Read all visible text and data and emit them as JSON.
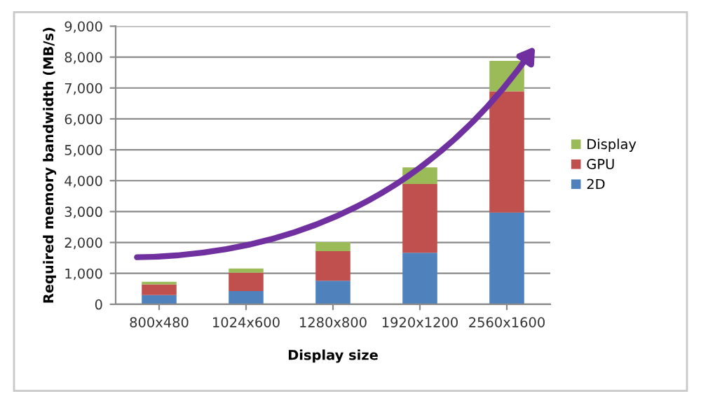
{
  "chart_data": {
    "type": "bar",
    "stacked": true,
    "xlabel": "Display size",
    "ylabel": "Required memory bandwidth (MB/s)",
    "categories": [
      "800x480",
      "1024x600",
      "1280x800",
      "1920x1200",
      "2560x1600"
    ],
    "series": [
      {
        "name": "2D",
        "color": "#4f81bd",
        "values": [
          300,
          430,
          760,
          1670,
          2970
        ]
      },
      {
        "name": "GPU",
        "color": "#c0504d",
        "values": [
          340,
          590,
          960,
          2220,
          3920
        ]
      },
      {
        "name": "Display",
        "color": "#9bbb59",
        "values": [
          90,
          140,
          290,
          540,
          990
        ]
      }
    ],
    "ylim": [
      0,
      9000
    ],
    "yticks": [
      {
        "value": 0,
        "label": "0"
      },
      {
        "value": 1000,
        "label": "1,000"
      },
      {
        "value": 2000,
        "label": "2,000"
      },
      {
        "value": 3000,
        "label": "3,000"
      },
      {
        "value": 4000,
        "label": "4,000"
      },
      {
        "value": 5000,
        "label": "5,000"
      },
      {
        "value": 6000,
        "label": "6,000"
      },
      {
        "value": 7000,
        "label": "7,000"
      },
      {
        "value": 8000,
        "label": "8,000"
      },
      {
        "value": 9000,
        "label": "9,000"
      }
    ],
    "grid": "y",
    "legend": "right"
  }
}
